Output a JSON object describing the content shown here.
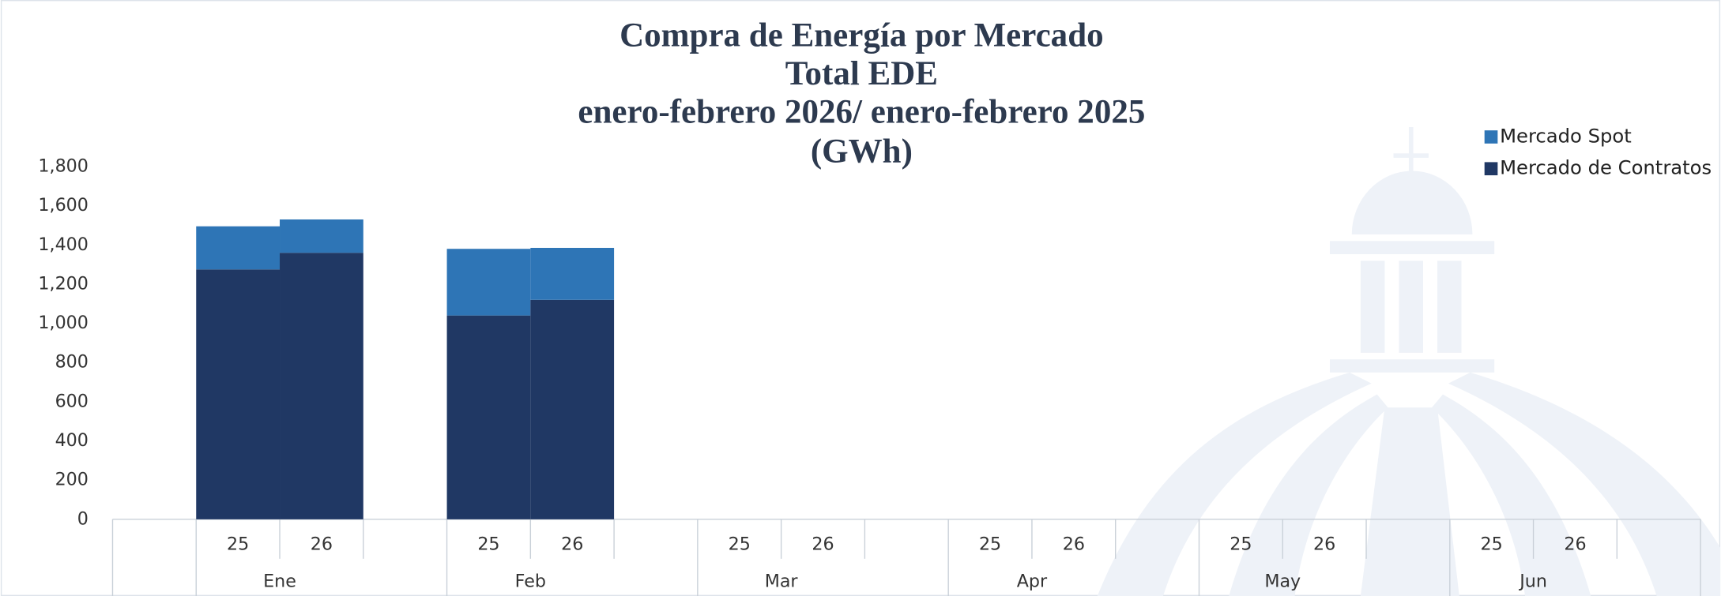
{
  "chart_data": {
    "type": "stacked_bar",
    "title": [
      "Compra de Energía por Mercado",
      "Total EDE",
      "enero-febrero 2026/ enero-febrero 2025",
      "(GWh)"
    ],
    "groups": [
      "Ene",
      "Feb",
      "Mar",
      "Apr",
      "May",
      "Jun"
    ],
    "categories": [
      "25",
      "26",
      "25",
      "26",
      "25",
      "26",
      "25",
      "26",
      "25",
      "26",
      "25",
      "26"
    ],
    "series": [
      {
        "name": "Mercado de Contratos",
        "color": "#203864",
        "values": [
          1275,
          1360,
          1040,
          1120,
          null,
          null,
          null,
          null,
          null,
          null,
          null,
          null
        ]
      },
      {
        "name": "Mercado Spot",
        "color": "#2e75b6",
        "values": [
          220,
          170,
          340,
          265,
          null,
          null,
          null,
          null,
          null,
          null,
          null,
          null
        ]
      }
    ],
    "ylim": [
      0,
      1800
    ],
    "yticks": [
      0,
      200,
      400,
      600,
      800,
      {
        "value": 1000,
        "label": "1,000"
      },
      {
        "value": 1200,
        "label": "1,200"
      },
      {
        "value": 1400,
        "label": "1,400"
      },
      {
        "value": 1600,
        "label": "1,600"
      },
      {
        "value": 1800,
        "label": "1,800"
      }
    ],
    "legend": "top-right"
  }
}
